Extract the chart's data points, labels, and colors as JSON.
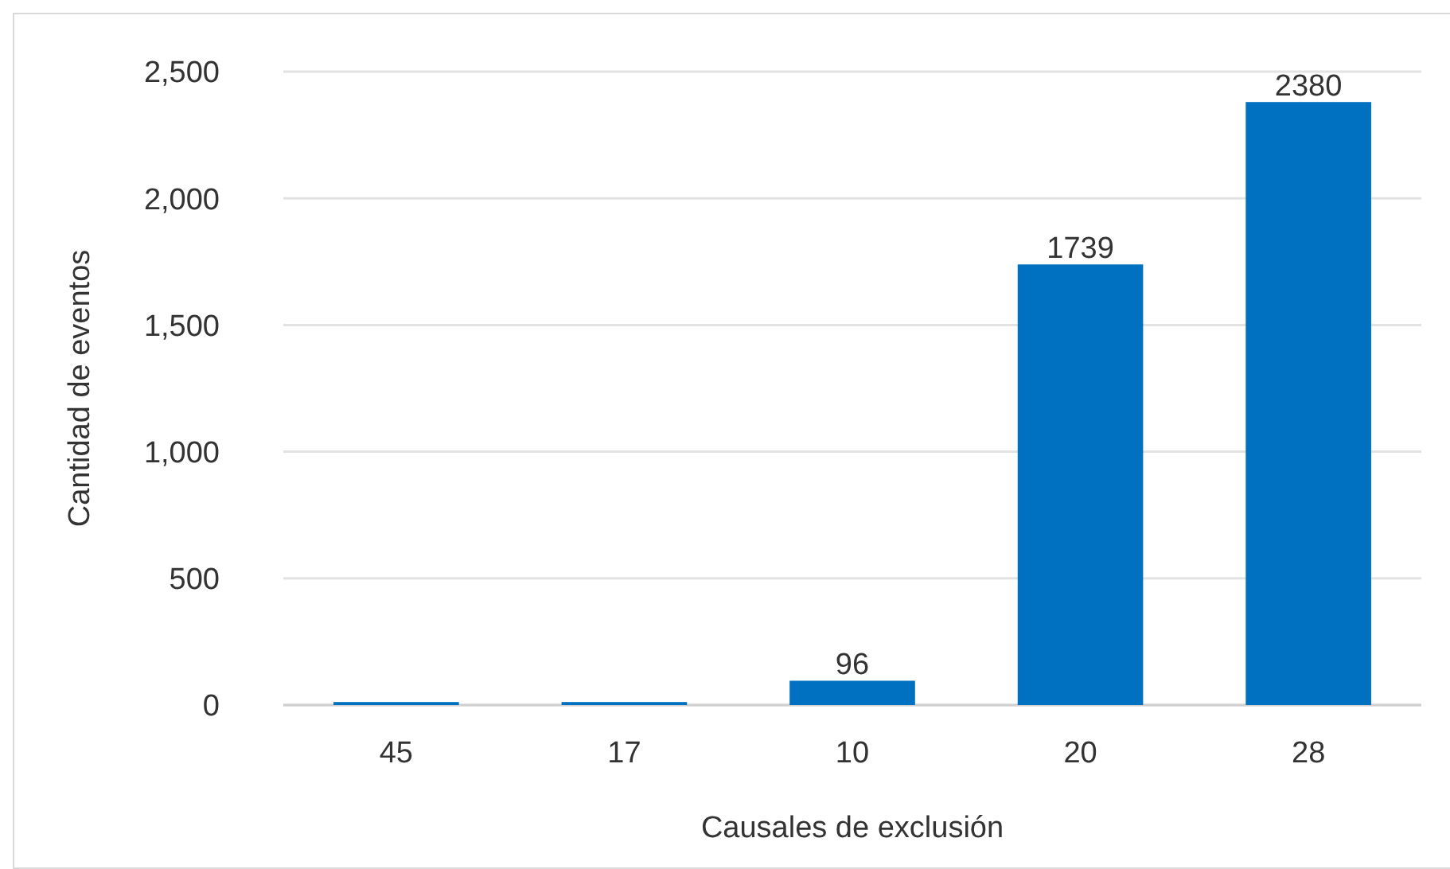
{
  "chart_data": {
    "type": "bar",
    "xlabel": "Causales de exclusión",
    "ylabel": "Cantidad de eventos",
    "categories": [
      "45",
      "17",
      "10",
      "20",
      "28"
    ],
    "values": [
      12,
      12,
      96,
      1739,
      2380
    ],
    "value_labels": [
      null,
      null,
      "96",
      "1739",
      "2380"
    ],
    "color": "#0070c0",
    "ylim": [
      0,
      2500
    ],
    "yticks": [
      {
        "value": 0,
        "label": "0"
      },
      {
        "value": 500,
        "label": "500"
      },
      {
        "value": 1000,
        "label": "1,000"
      },
      {
        "value": 1500,
        "label": "1,500"
      },
      {
        "value": 2000,
        "label": "2,000"
      },
      {
        "value": 2500,
        "label": "2,500"
      }
    ],
    "grid": "y"
  }
}
